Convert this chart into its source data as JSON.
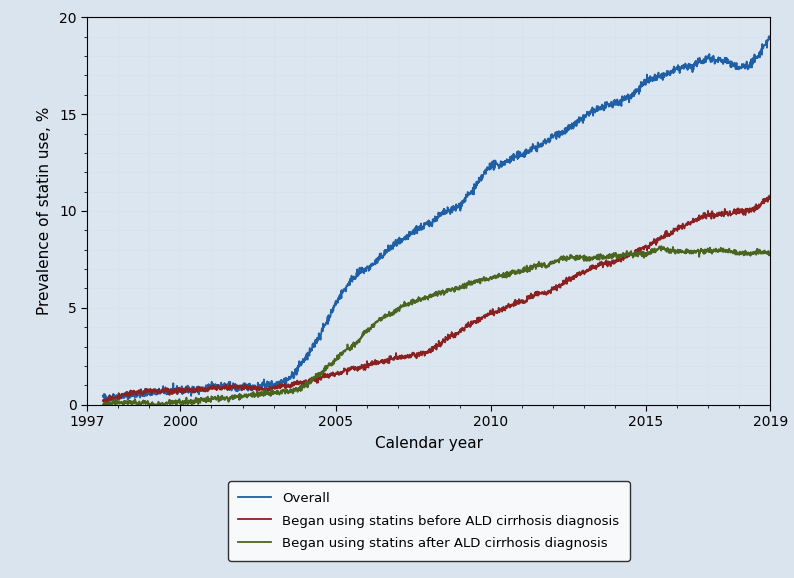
{
  "title": "",
  "xlabel": "Calendar year",
  "ylabel": "Prevalence of statin use, %",
  "xlim": [
    1997,
    2019
  ],
  "ylim": [
    0,
    20
  ],
  "yticks": [
    0,
    5,
    10,
    15,
    20
  ],
  "xticks": [
    1997,
    2000,
    2005,
    2010,
    2015,
    2019
  ],
  "background_color": "#d9e4ee",
  "plot_bg_color": "#dce6f0",
  "grid_color": "#c8d8e8",
  "grid_minor_color": "#d4e2ee",
  "line_colors": {
    "overall": "#1f5fa6",
    "before": "#8b2020",
    "after": "#4a6520"
  },
  "line_width": 1.3,
  "legend_labels": [
    "Overall",
    "Began using statins before ALD cirrhosis diagnosis",
    "Began using statins after ALD cirrhosis diagnosis"
  ],
  "seed": 42,
  "n_points": 2000,
  "overall_control": [
    [
      1997.5,
      0.4
    ],
    [
      1998,
      0.5
    ],
    [
      1999,
      0.75
    ],
    [
      2000,
      0.85
    ],
    [
      2001,
      0.95
    ],
    [
      2002,
      1.0
    ],
    [
      2003,
      1.05
    ],
    [
      2003.5,
      1.3
    ],
    [
      2004,
      2.3
    ],
    [
      2004.5,
      3.5
    ],
    [
      2005,
      5.2
    ],
    [
      2005.5,
      6.2
    ],
    [
      2006,
      6.8
    ],
    [
      2006.5,
      7.5
    ],
    [
      2007,
      8.2
    ],
    [
      2007.5,
      8.8
    ],
    [
      2008,
      9.2
    ],
    [
      2008.5,
      9.8
    ],
    [
      2009,
      10.3
    ],
    [
      2009.5,
      11.2
    ],
    [
      2010,
      12.4
    ],
    [
      2010.5,
      12.7
    ],
    [
      2011,
      13.0
    ],
    [
      2011.5,
      13.3
    ],
    [
      2012,
      13.8
    ],
    [
      2012.5,
      14.2
    ],
    [
      2013,
      14.7
    ],
    [
      2013.5,
      15.2
    ],
    [
      2014,
      15.5
    ],
    [
      2014.5,
      15.8
    ],
    [
      2015,
      16.5
    ],
    [
      2015.5,
      16.8
    ],
    [
      2016,
      17.0
    ],
    [
      2016.5,
      17.2
    ],
    [
      2017,
      17.8
    ],
    [
      2017.5,
      17.8
    ],
    [
      2018,
      17.5
    ],
    [
      2018.3,
      17.6
    ],
    [
      2018.6,
      18.0
    ],
    [
      2019,
      19.0
    ],
    [
      2019.2,
      19.2
    ]
  ],
  "before_control": [
    [
      1997.5,
      0.25
    ],
    [
      1998,
      0.35
    ],
    [
      1999,
      0.55
    ],
    [
      2000,
      0.65
    ],
    [
      2001,
      0.7
    ],
    [
      2002,
      0.8
    ],
    [
      2003,
      0.95
    ],
    [
      2004,
      1.2
    ],
    [
      2004.5,
      1.5
    ],
    [
      2005,
      1.75
    ],
    [
      2005.5,
      2.0
    ],
    [
      2006,
      2.2
    ],
    [
      2006.5,
      2.5
    ],
    [
      2007,
      2.7
    ],
    [
      2007.5,
      2.9
    ],
    [
      2008,
      3.1
    ],
    [
      2008.5,
      3.5
    ],
    [
      2009,
      4.0
    ],
    [
      2009.5,
      4.5
    ],
    [
      2010,
      5.0
    ],
    [
      2010.5,
      5.3
    ],
    [
      2011,
      5.6
    ],
    [
      2011.5,
      5.9
    ],
    [
      2012,
      6.2
    ],
    [
      2012.5,
      6.6
    ],
    [
      2013,
      7.0
    ],
    [
      2013.5,
      7.4
    ],
    [
      2014,
      7.6
    ],
    [
      2014.5,
      8.0
    ],
    [
      2015,
      8.5
    ],
    [
      2015.5,
      9.0
    ],
    [
      2016,
      9.5
    ],
    [
      2016.5,
      9.8
    ],
    [
      2017,
      10.0
    ],
    [
      2017.5,
      10.1
    ],
    [
      2018,
      10.2
    ],
    [
      2018.5,
      10.3
    ],
    [
      2019,
      10.8
    ],
    [
      2019.2,
      11.2
    ]
  ],
  "after_control": [
    [
      1997.5,
      0.0
    ],
    [
      1998,
      0.05
    ],
    [
      1999,
      0.1
    ],
    [
      2000,
      0.15
    ],
    [
      2001,
      0.2
    ],
    [
      2002,
      0.3
    ],
    [
      2003,
      0.45
    ],
    [
      2003.5,
      0.6
    ],
    [
      2004,
      0.9
    ],
    [
      2004.5,
      1.5
    ],
    [
      2005,
      2.2
    ],
    [
      2005.5,
      3.0
    ],
    [
      2006,
      3.8
    ],
    [
      2006.5,
      4.5
    ],
    [
      2007,
      5.0
    ],
    [
      2007.5,
      5.5
    ],
    [
      2008,
      5.8
    ],
    [
      2008.5,
      6.0
    ],
    [
      2009,
      6.2
    ],
    [
      2009.5,
      6.5
    ],
    [
      2010,
      6.7
    ],
    [
      2010.5,
      6.9
    ],
    [
      2011,
      7.0
    ],
    [
      2011.5,
      7.2
    ],
    [
      2012,
      7.4
    ],
    [
      2012.5,
      7.6
    ],
    [
      2013,
      7.7
    ],
    [
      2013.5,
      7.8
    ],
    [
      2014,
      7.8
    ],
    [
      2014.5,
      7.8
    ],
    [
      2015,
      7.8
    ],
    [
      2015.5,
      7.9
    ],
    [
      2016,
      7.8
    ],
    [
      2016.5,
      7.7
    ],
    [
      2017,
      7.8
    ],
    [
      2017.5,
      7.8
    ],
    [
      2018,
      7.7
    ],
    [
      2018.5,
      7.75
    ],
    [
      2019,
      7.8
    ],
    [
      2019.2,
      7.9
    ]
  ]
}
